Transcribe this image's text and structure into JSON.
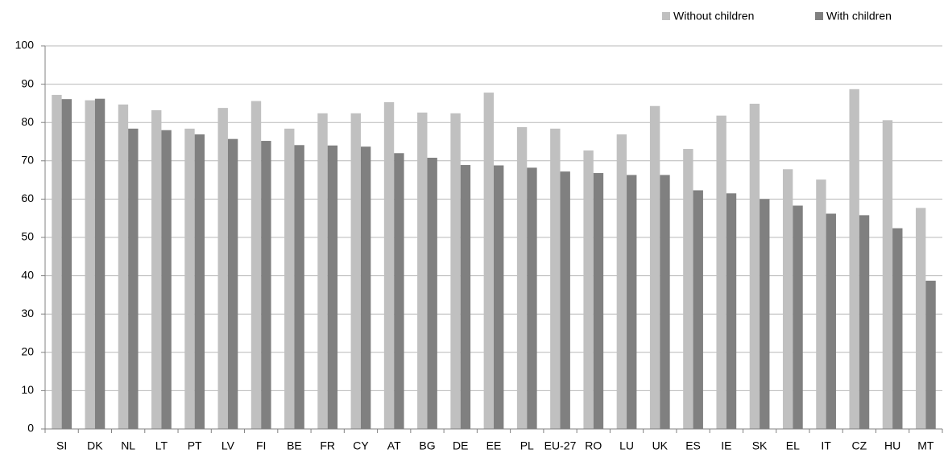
{
  "chart_data": {
    "type": "bar",
    "categories": [
      "SI",
      "DK",
      "NL",
      "LT",
      "PT",
      "LV",
      "FI",
      "BE",
      "FR",
      "CY",
      "AT",
      "BG",
      "DE",
      "EE",
      "PL",
      "EU-27",
      "RO",
      "LU",
      "UK",
      "ES",
      "IE",
      "SK",
      "EL",
      "IT",
      "CZ",
      "HU",
      "MT"
    ],
    "series": [
      {
        "name": "Without children",
        "color": "#c0c0c0",
        "values": [
          87.2,
          85.8,
          84.7,
          83.2,
          78.4,
          83.8,
          85.6,
          78.4,
          82.4,
          82.4,
          85.3,
          82.6,
          82.4,
          87.8,
          78.8,
          78.4,
          72.7,
          76.9,
          84.3,
          73.1,
          81.8,
          84.9,
          67.8,
          65.1,
          88.7,
          80.6,
          57.7
        ]
      },
      {
        "name": "With children",
        "color": "#808080",
        "values": [
          86.1,
          86.2,
          78.4,
          78.0,
          76.9,
          75.7,
          75.2,
          74.1,
          74.0,
          73.7,
          72.0,
          70.8,
          68.9,
          68.8,
          68.2,
          67.2,
          66.8,
          66.3,
          66.3,
          62.3,
          61.5,
          60.0,
          58.3,
          56.2,
          55.8,
          52.4,
          38.7
        ]
      }
    ],
    "ylim": [
      0,
      100
    ],
    "yticks": [
      0,
      10,
      20,
      30,
      40,
      50,
      60,
      70,
      80,
      90,
      100
    ],
    "grid": true,
    "legend": "top-right"
  }
}
